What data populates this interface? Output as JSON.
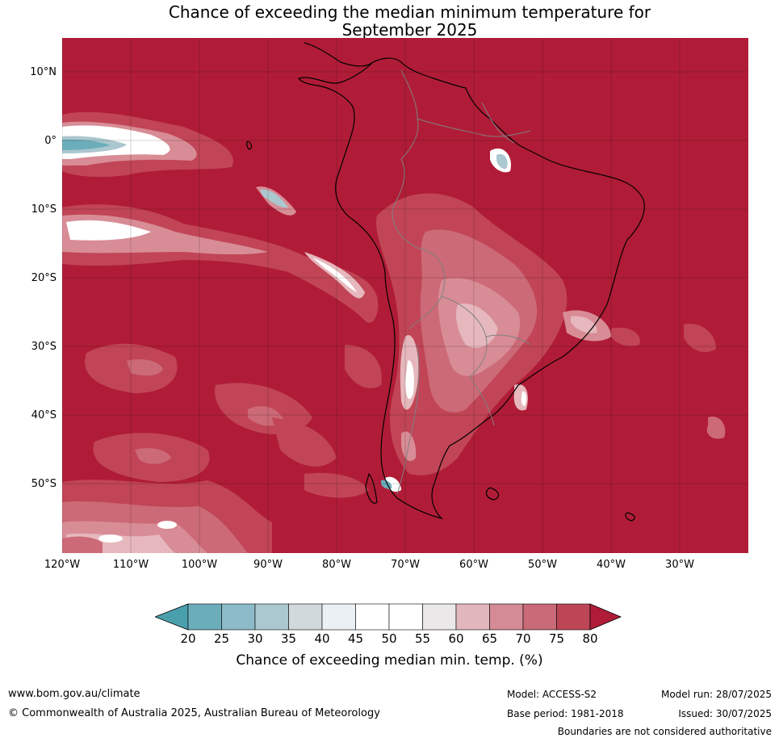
{
  "title_line1": "Chance of exceeding the median minimum temperature for",
  "title_line2": "September 2025",
  "lat_labels": [
    "10°N",
    "0°",
    "10°S",
    "20°S",
    "30°S",
    "40°S",
    "50°S"
  ],
  "lon_labels": [
    "120°W",
    "110°W",
    "100°W",
    "90°W",
    "80°W",
    "70°W",
    "60°W",
    "50°W",
    "40°W",
    "30°W"
  ],
  "colorbar": {
    "labels": [
      "20",
      "25",
      "30",
      "35",
      "40",
      "45",
      "50",
      "55",
      "60",
      "65",
      "70",
      "75",
      "80"
    ],
    "colors": [
      "#4a9fad",
      "#6badbb",
      "#8cbac8",
      "#abc7cf",
      "#d2d9dc",
      "#eaf0f3",
      "#ffffff",
      "#ffffff",
      "#ebe8ea",
      "#e1b7bd",
      "#d48b96",
      "#c86a77",
      "#bd4656",
      "#b01c37"
    ],
    "title": "Chance of exceeding median min. temp. (%)"
  },
  "map_colors": {
    "dominant": "#b01c37",
    "level_75": "#c14556",
    "level_70": "#cc6a77",
    "level_65": "#d88c96",
    "level_60": "#e6b8bd",
    "neutral": "#ffffff",
    "below": "#6badbb",
    "coast": "#000000",
    "borders": "#808080"
  },
  "footer": {
    "website": "www.bom.gov.au/climate",
    "copyright": "© Commonwealth of Australia 2025, Australian Bureau of Meteorology",
    "model": "Model: ACCESS-S2",
    "model_run": "Model run: 28/07/2025",
    "base_period": "Base period: 1981-2018",
    "issued": "Issued: 30/07/2025",
    "disclaimer": "Boundaries are not considered authoritative"
  }
}
